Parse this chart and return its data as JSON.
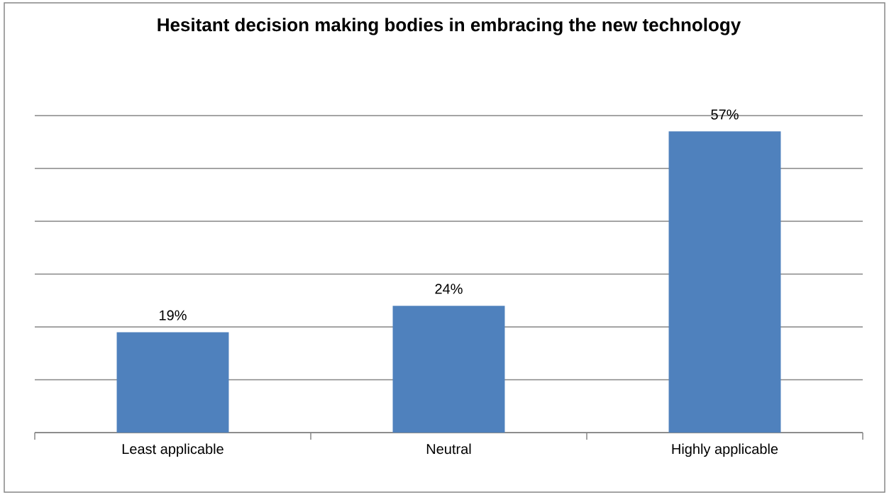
{
  "chart_data": {
    "type": "bar",
    "title": "Hesitant decision making bodies in embracing the new technology",
    "categories": [
      "Least applicable",
      "Neutral",
      "Highly applicable"
    ],
    "values": [
      19,
      24,
      57
    ],
    "value_labels": [
      "19%",
      "24%",
      "57%"
    ],
    "color": "#4f81bd",
    "ylim": [
      0,
      60
    ],
    "yticks": [
      {
        "value": 0,
        "label": null
      },
      {
        "value": 10,
        "label": null
      },
      {
        "value": 20,
        "label": null
      },
      {
        "value": 30,
        "label": null
      },
      {
        "value": 40,
        "label": null
      },
      {
        "value": 50,
        "label": null
      },
      {
        "value": 60,
        "label": null
      }
    ],
    "grid": "y",
    "tick_labels": "x"
  }
}
